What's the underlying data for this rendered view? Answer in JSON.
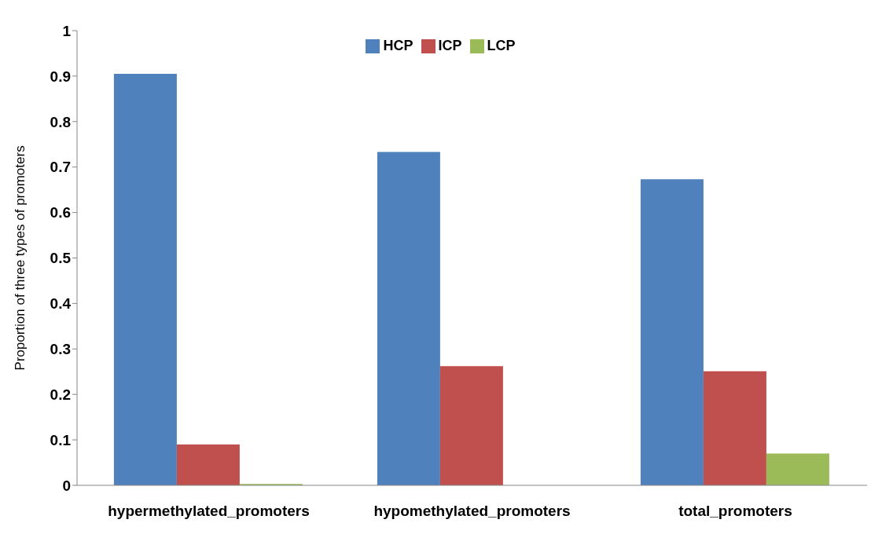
{
  "chart_data": {
    "type": "bar",
    "ylabel": "Proportion of three types of promoters",
    "categories": [
      "hypermethylated_promoters",
      "hypomethylated_promoters",
      "total_promoters"
    ],
    "series": [
      {
        "name": "HCP",
        "color": "#4f81bd",
        "values": [
          0.905,
          0.733,
          0.673
        ]
      },
      {
        "name": "ICP",
        "color": "#c0504d",
        "values": [
          0.09,
          0.262,
          0.251
        ]
      },
      {
        "name": "LCP",
        "color": "#9bbb59",
        "values": [
          0.003,
          0,
          0.07
        ]
      }
    ],
    "ylim": [
      0,
      1
    ],
    "yticks": [
      0,
      0.1,
      0.2,
      0.3,
      0.4,
      0.5,
      0.6,
      0.7,
      0.8,
      0.9,
      1
    ],
    "grid": false,
    "legend": "top"
  }
}
